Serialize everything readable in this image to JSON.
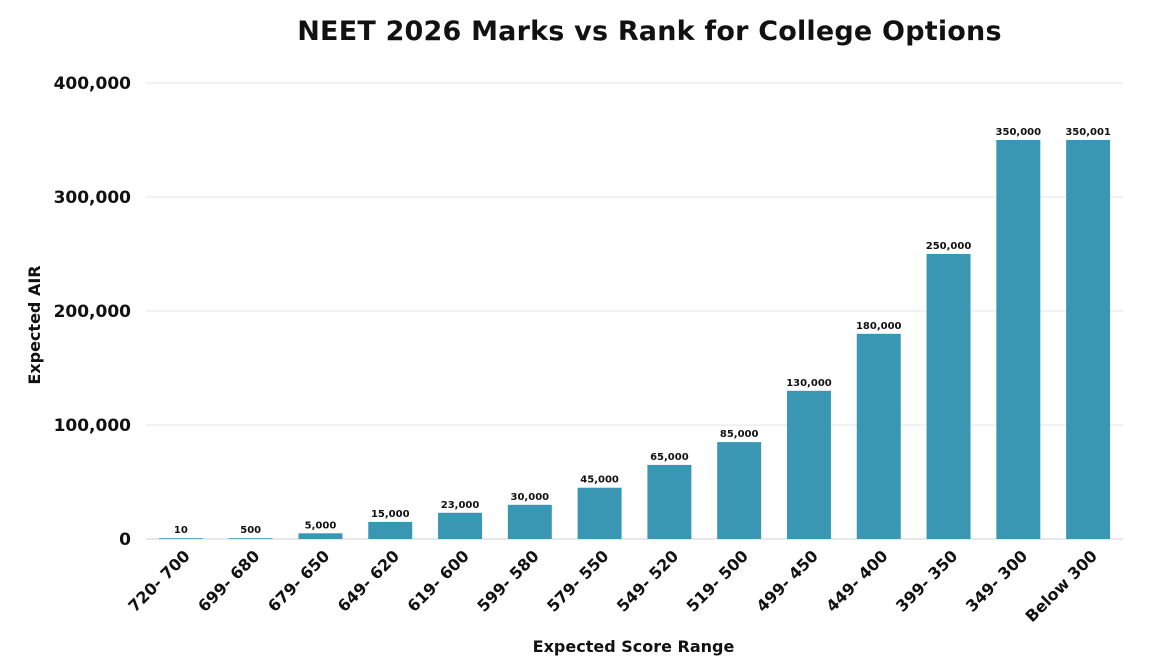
{
  "chart_data": {
    "type": "bar",
    "title": "NEET 2026 Marks vs Rank for College Options",
    "xlabel": "Expected Score Range",
    "ylabel": "Expected AIR",
    "ylim": [
      0,
      400000
    ],
    "yticks": [
      0,
      100000,
      200000,
      300000,
      400000
    ],
    "ytick_labels": [
      "0",
      "100,000",
      "200,000",
      "300,000",
      "400,000"
    ],
    "grid": true,
    "legend": "none",
    "bar_color": "#3a97b3",
    "categories": [
      "720- 700",
      "699- 680",
      "679- 650",
      "649- 620",
      "619- 600",
      "599- 580",
      "579- 550",
      "549- 520",
      "519- 500",
      "499- 450",
      "449- 400",
      "399- 350",
      "349- 300",
      "Below 300"
    ],
    "values": [
      10,
      500,
      5000,
      15000,
      23000,
      30000,
      45000,
      65000,
      85000,
      130000,
      180000,
      250000,
      350000,
      350001
    ],
    "data_labels": [
      "10",
      "500",
      "5,000",
      "15,000",
      "23,000",
      "30,000",
      "45,000",
      "65,000",
      "85,000",
      "130,000",
      "180,000",
      "250,000",
      "350,000",
      "350,001"
    ]
  }
}
